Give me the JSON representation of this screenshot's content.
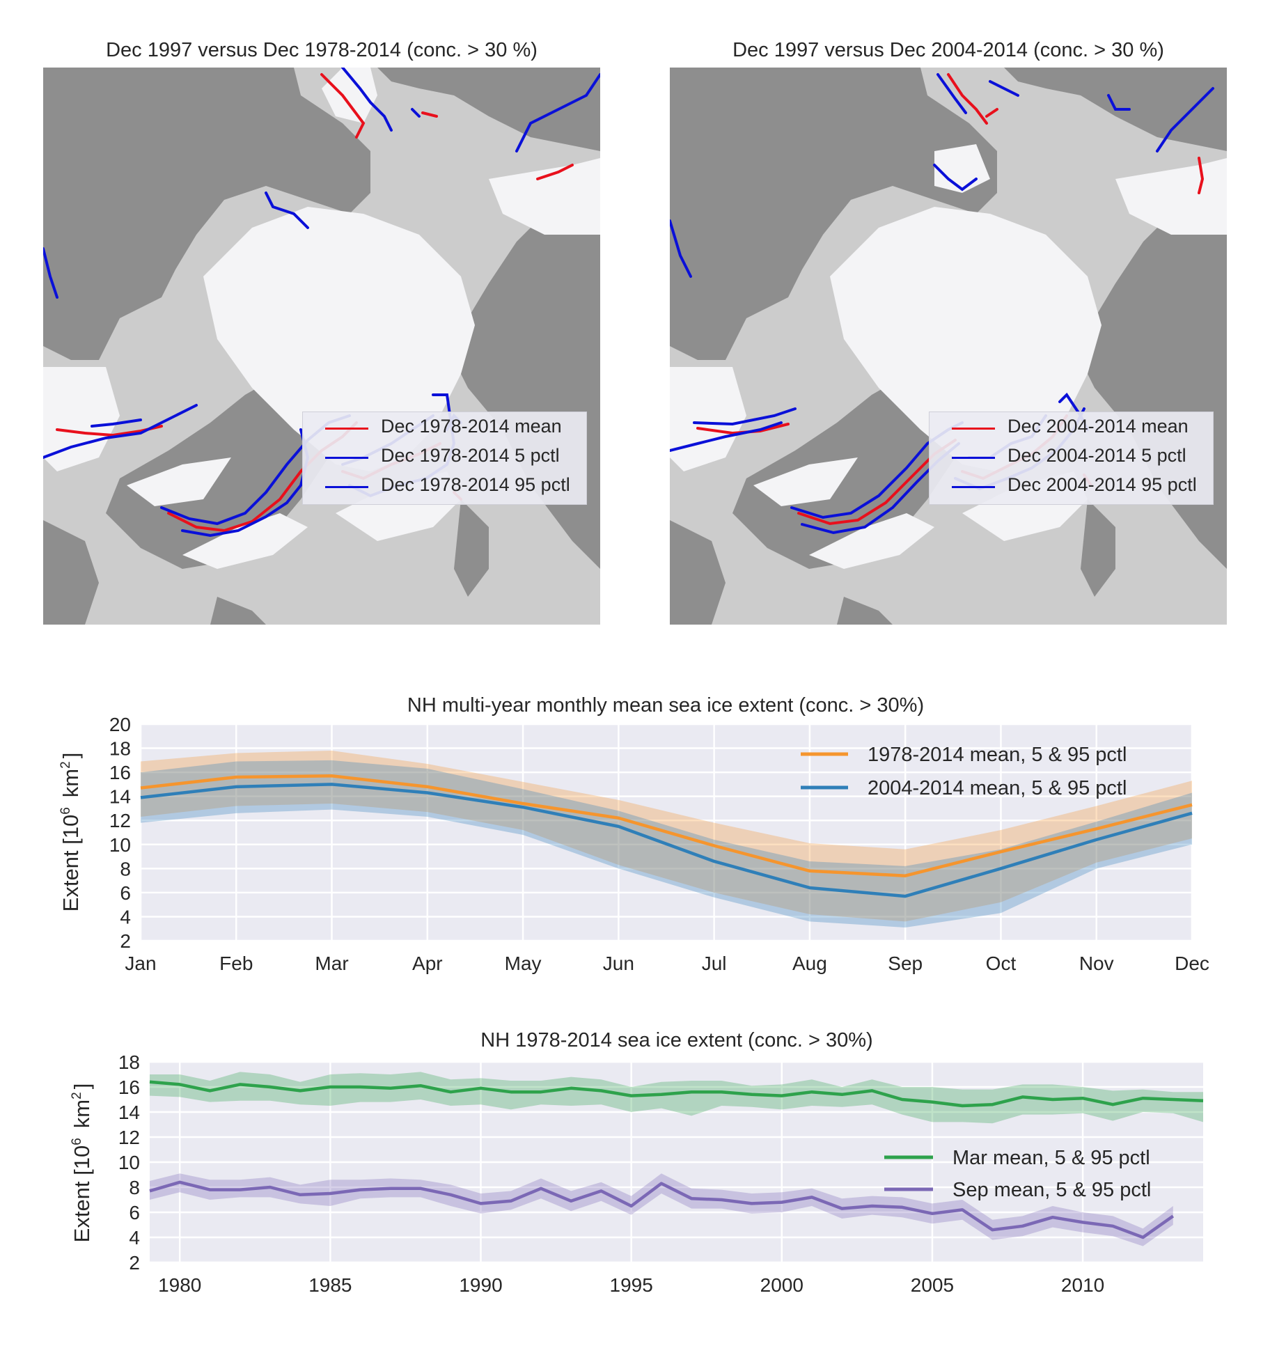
{
  "maps": [
    {
      "title": "Dec 1997 versus Dec 1978-2014 (conc. > 30 %)",
      "legend": [
        {
          "label": "Dec 1978-2014 mean",
          "color": "#e8101c"
        },
        {
          "label": "Dec 1978-2014 5 pctl",
          "color": "#0a10d8"
        },
        {
          "label": "Dec 1978-2014 95 pctl",
          "color": "#0a10d8"
        }
      ]
    },
    {
      "title": "Dec 1997 versus Dec 2004-2014 (conc. > 30 %)",
      "legend": [
        {
          "label": "Dec 2004-2014 mean",
          "color": "#e8101c"
        },
        {
          "label": "Dec 2004-2014 5 pctl",
          "color": "#0a10d8"
        },
        {
          "label": "Dec 2004-2014 95 pctl",
          "color": "#0a10d8"
        }
      ]
    }
  ],
  "map_colors": {
    "land": "#8e8e8e",
    "ocean": "#cccccc",
    "ice": "#f4f4f6",
    "mean": "#e8101c",
    "pctl": "#0a10d8"
  },
  "chart_data": [
    {
      "type": "line",
      "title": "NH multi-year monthly mean sea ice extent (conc. > 30%)",
      "ylabel": "Extent [10",
      "ylabel_sup": "6",
      "ylabel_unit": "km",
      "ylabel_unit_sup": "2",
      "ylabel_close": "]",
      "ylim": [
        2,
        20
      ],
      "yticks": [
        2,
        4,
        6,
        8,
        10,
        12,
        14,
        16,
        18,
        20
      ],
      "categories": [
        "Jan",
        "Feb",
        "Mar",
        "Apr",
        "May",
        "Jun",
        "Jul",
        "Aug",
        "Sep",
        "Oct",
        "Nov",
        "Dec"
      ],
      "grid": true,
      "legend_position": "top-right",
      "series": [
        {
          "name": "1978-2014 mean, 5 & 95 pctl",
          "color": "#f5952e",
          "values": [
            14.7,
            15.6,
            15.7,
            14.8,
            13.4,
            12.2,
            9.9,
            7.8,
            7.4,
            9.4,
            11.3,
            13.3
          ],
          "p5": [
            12.3,
            13.2,
            13.4,
            12.7,
            11.2,
            8.3,
            6.0,
            4.2,
            3.6,
            5.2,
            8.5,
            10.5
          ],
          "p95": [
            16.9,
            17.6,
            17.8,
            16.7,
            15.2,
            13.7,
            11.8,
            10.1,
            9.6,
            11.2,
            13.2,
            15.3
          ]
        },
        {
          "name": "2004-2014 mean, 5 & 95 pctl",
          "color": "#2f7fb8",
          "values": [
            13.9,
            14.8,
            15.0,
            14.3,
            13.1,
            11.5,
            8.6,
            6.4,
            5.7,
            8.0,
            10.4,
            12.6
          ],
          "p5": [
            11.8,
            12.6,
            12.9,
            12.3,
            10.8,
            8.0,
            5.6,
            3.6,
            3.1,
            4.3,
            8.0,
            10.0
          ],
          "p95": [
            16.0,
            16.9,
            17.0,
            16.3,
            14.6,
            12.8,
            10.4,
            8.6,
            8.2,
            9.6,
            11.9,
            14.3
          ]
        }
      ]
    },
    {
      "type": "line",
      "title": "NH 1978-2014 sea ice extent (conc. > 30%)",
      "ylabel": "Extent [10",
      "ylabel_sup": "6",
      "ylabel_unit": "km",
      "ylabel_unit_sup": "2",
      "ylabel_close": "]",
      "ylim": [
        2,
        18
      ],
      "yticks": [
        2,
        4,
        6,
        8,
        10,
        12,
        14,
        16,
        18
      ],
      "xlim": [
        1979,
        2014
      ],
      "xticks": [
        1980,
        1985,
        1990,
        1995,
        2000,
        2005,
        2010
      ],
      "grid": true,
      "legend_position": "center-right",
      "x": [
        1979,
        1980,
        1981,
        1982,
        1983,
        1984,
        1985,
        1986,
        1987,
        1988,
        1989,
        1990,
        1991,
        1992,
        1993,
        1994,
        1995,
        1996,
        1997,
        1998,
        1999,
        2000,
        2001,
        2002,
        2003,
        2004,
        2005,
        2006,
        2007,
        2008,
        2009,
        2010,
        2011,
        2012,
        2013,
        2014
      ],
      "series": [
        {
          "name": "Mar mean, 5 & 95 pctl",
          "color": "#2ea24c",
          "values": [
            16.4,
            16.2,
            15.7,
            16.2,
            16.0,
            15.7,
            16.0,
            16.0,
            15.9,
            16.1,
            15.6,
            15.9,
            15.6,
            15.6,
            15.9,
            15.7,
            15.3,
            15.4,
            15.6,
            15.6,
            15.4,
            15.3,
            15.6,
            15.4,
            15.7,
            15.0,
            14.8,
            14.5,
            14.6,
            15.2,
            15.0,
            15.1,
            14.6,
            15.1,
            15.0,
            14.9
          ],
          "p5": [
            15.3,
            15.2,
            14.8,
            14.9,
            14.9,
            14.6,
            14.5,
            14.8,
            14.8,
            15.0,
            14.5,
            14.6,
            14.2,
            14.6,
            14.5,
            14.6,
            14.0,
            14.3,
            13.7,
            14.5,
            14.4,
            14.2,
            14.5,
            14.4,
            14.6,
            13.8,
            13.2,
            13.2,
            13.1,
            13.8,
            13.8,
            13.9,
            13.3,
            14.0,
            13.9,
            13.2
          ],
          "p95": [
            17.0,
            17.0,
            16.5,
            17.2,
            17.0,
            16.4,
            17.0,
            17.1,
            17.0,
            17.2,
            16.6,
            16.7,
            16.5,
            16.5,
            16.8,
            16.6,
            16.0,
            16.4,
            16.5,
            16.5,
            16.1,
            16.2,
            16.6,
            16.0,
            16.6,
            16.0,
            16.0,
            15.8,
            15.8,
            16.2,
            16.2,
            16.0,
            15.7,
            15.8,
            15.6,
            15.6
          ]
        },
        {
          "name": "Sep mean, 5 & 95 pctl",
          "color": "#7b68b5",
          "values": [
            7.7,
            8.4,
            7.8,
            7.8,
            8.0,
            7.4,
            7.5,
            7.8,
            7.9,
            7.9,
            7.4,
            6.7,
            6.9,
            7.9,
            6.9,
            7.7,
            6.5,
            8.3,
            7.1,
            7.0,
            6.7,
            6.8,
            7.2,
            6.3,
            6.5,
            6.4,
            5.9,
            6.2,
            4.6,
            4.9,
            5.6,
            5.2,
            4.9,
            4.0,
            5.7,
            null
          ],
          "p5": [
            7.0,
            7.6,
            7.0,
            7.2,
            7.2,
            6.7,
            6.5,
            7.1,
            7.2,
            7.2,
            6.5,
            5.9,
            6.2,
            7.1,
            6.1,
            6.9,
            5.8,
            7.5,
            6.3,
            6.3,
            5.9,
            6.0,
            6.5,
            5.5,
            5.8,
            5.6,
            5.1,
            5.4,
            3.8,
            4.1,
            4.8,
            4.4,
            4.1,
            3.3,
            5.0,
            null
          ],
          "p95": [
            8.5,
            9.1,
            8.6,
            8.6,
            8.8,
            8.2,
            8.6,
            8.6,
            8.7,
            8.6,
            8.2,
            7.5,
            7.7,
            8.7,
            7.7,
            8.4,
            7.3,
            9.1,
            7.9,
            7.8,
            7.5,
            7.6,
            7.9,
            7.1,
            7.3,
            7.2,
            6.7,
            7.0,
            5.4,
            5.7,
            6.5,
            6.0,
            5.7,
            4.7,
            6.5,
            null
          ]
        }
      ]
    }
  ]
}
